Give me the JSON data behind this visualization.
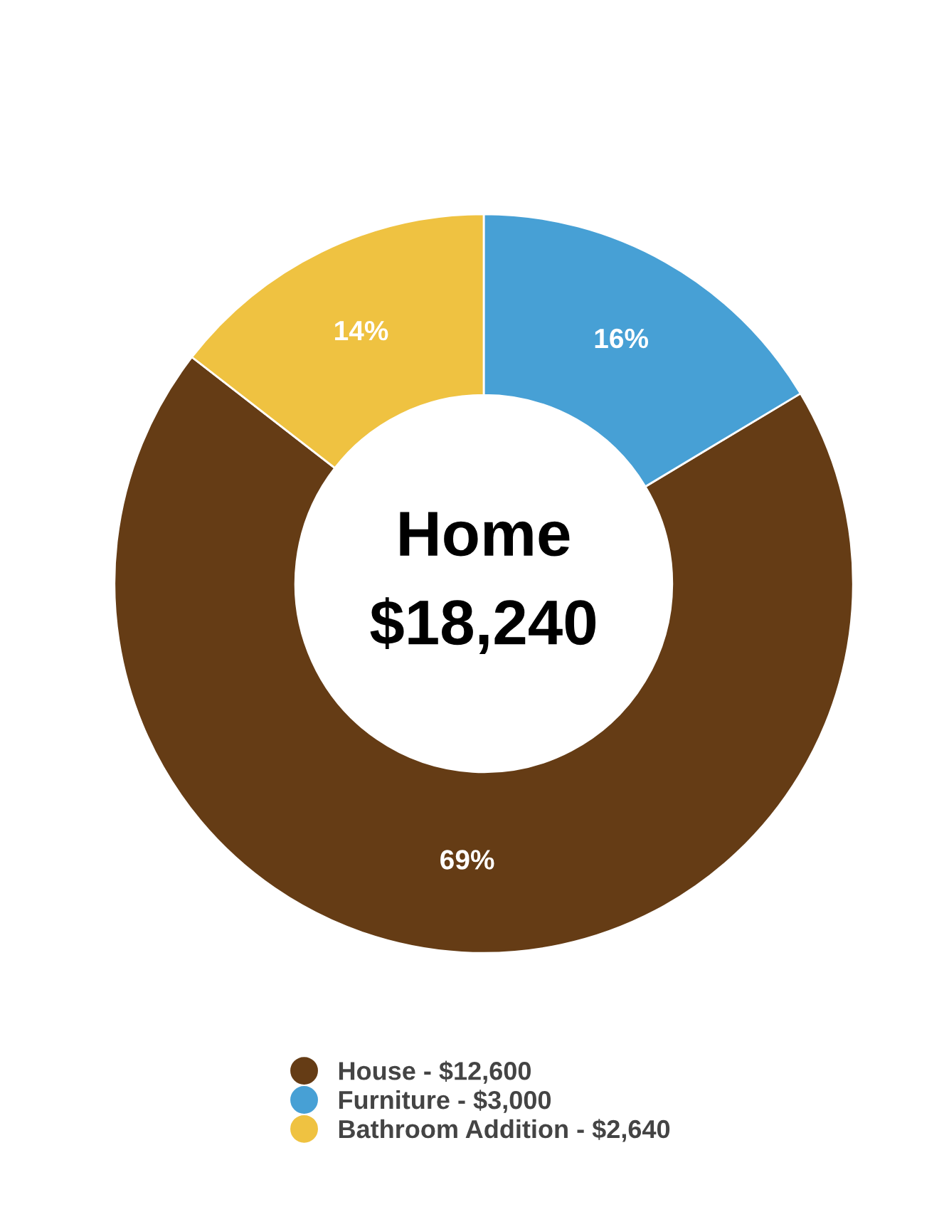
{
  "chart_data": {
    "type": "donut",
    "categories": [
      "House - $12,600",
      "Furniture - $3,000",
      "Bathroom Addition - $2,640"
    ],
    "values": [
      69.1,
      16.4,
      14.5
    ],
    "colors": [
      "#653c15",
      "#47a0d5",
      "#efc241"
    ],
    "value_labels": [
      "69%",
      "16%",
      "14%"
    ],
    "annotations": [
      "Home",
      "$18,240"
    ],
    "legend": "bottom"
  }
}
